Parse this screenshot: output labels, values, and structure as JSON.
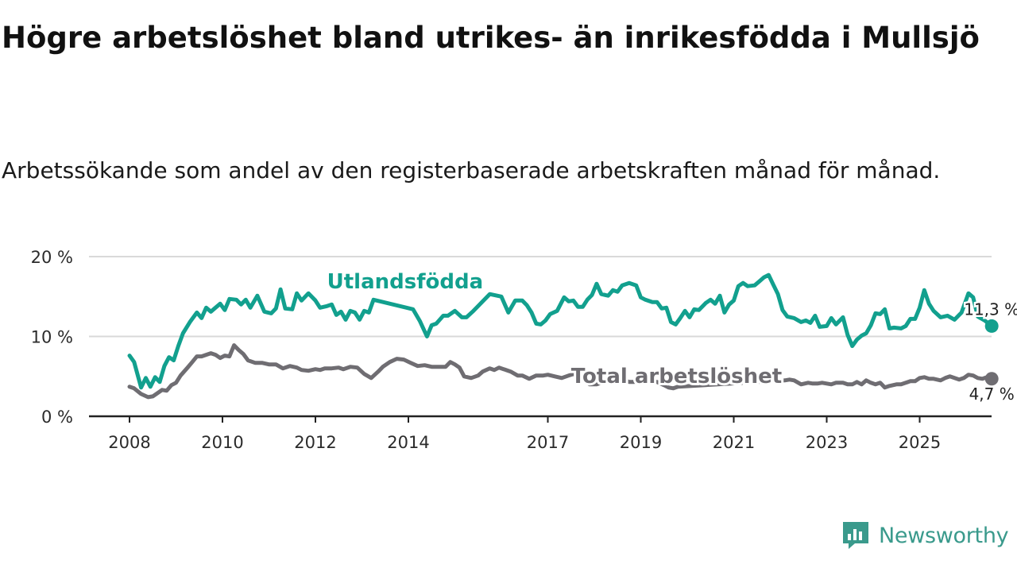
{
  "title": "Högre arbetslöshet bland utrikes- än inrikesfödda i Mullsjö",
  "subtitle": "Arbetssökande som andel av den registerbaserade arbetskraften månad för månad.",
  "brand": "Newsworthy",
  "colors": {
    "utlandsfodda": "#12a08e",
    "total": "#6f6d72",
    "grid": "#d9d9d9",
    "axis": "#222222",
    "brand": "#3a9a8c"
  },
  "chart_data": {
    "type": "line",
    "title": "Högre arbetslöshet bland utrikes- än inrikesfödda i Mullsjö",
    "ylabel": "",
    "xlabel": "",
    "ylim": [
      0,
      20
    ],
    "xlim": [
      2007.6,
      2026.6
    ],
    "y_ticks": [
      0,
      10,
      20
    ],
    "y_tick_labels": [
      "0 %",
      "10 %",
      "20 %"
    ],
    "x_ticks": [
      2008,
      2010,
      2012,
      2014,
      2017,
      2019,
      2021,
      2023,
      2025
    ],
    "x_tick_labels": [
      "2008",
      "2010",
      "2012",
      "2014",
      "2017",
      "2019",
      "2021",
      "2023",
      "2025"
    ],
    "grid": true,
    "series": [
      {
        "name": "Utlandsfödda",
        "label": "Utlandsfödda",
        "end_label": "11,3 %",
        "points": [
          [
            2008.0,
            7.6
          ],
          [
            2008.1,
            6.8
          ],
          [
            2008.25,
            3.6
          ],
          [
            2008.35,
            4.8
          ],
          [
            2008.45,
            3.7
          ],
          [
            2008.55,
            4.9
          ],
          [
            2008.65,
            4.3
          ],
          [
            2008.75,
            6.3
          ],
          [
            2008.85,
            7.4
          ],
          [
            2008.95,
            7.0
          ],
          [
            2009.05,
            8.8
          ],
          [
            2009.15,
            10.4
          ],
          [
            2009.3,
            11.8
          ],
          [
            2009.45,
            13.0
          ],
          [
            2009.55,
            12.3
          ],
          [
            2009.65,
            13.6
          ],
          [
            2009.75,
            13.1
          ],
          [
            2009.85,
            13.6
          ],
          [
            2009.95,
            14.1
          ],
          [
            2010.05,
            13.3
          ],
          [
            2010.15,
            14.7
          ],
          [
            2010.3,
            14.6
          ],
          [
            2010.4,
            14.0
          ],
          [
            2010.5,
            14.6
          ],
          [
            2010.6,
            13.6
          ],
          [
            2010.75,
            15.1
          ],
          [
            2010.9,
            13.1
          ],
          [
            2011.05,
            12.9
          ],
          [
            2011.15,
            13.5
          ],
          [
            2011.25,
            15.9
          ],
          [
            2011.35,
            13.5
          ],
          [
            2011.5,
            13.4
          ],
          [
            2011.6,
            15.4
          ],
          [
            2011.7,
            14.5
          ],
          [
            2011.85,
            15.4
          ],
          [
            2012.0,
            14.5
          ],
          [
            2012.1,
            13.6
          ],
          [
            2012.25,
            13.8
          ],
          [
            2012.35,
            14.0
          ],
          [
            2012.45,
            12.7
          ],
          [
            2012.55,
            13.1
          ],
          [
            2012.65,
            12.1
          ],
          [
            2012.75,
            13.2
          ],
          [
            2012.85,
            13.0
          ],
          [
            2012.95,
            12.1
          ],
          [
            2013.05,
            13.2
          ],
          [
            2013.15,
            13.0
          ],
          [
            2013.25,
            14.6
          ],
          [
            2014.1,
            13.4
          ],
          [
            2014.25,
            11.9
          ],
          [
            2014.4,
            10.0
          ],
          [
            2014.5,
            11.4
          ],
          [
            2014.6,
            11.6
          ],
          [
            2014.75,
            12.6
          ],
          [
            2014.85,
            12.6
          ],
          [
            2015.0,
            13.2
          ],
          [
            2015.15,
            12.4
          ],
          [
            2015.25,
            12.4
          ],
          [
            2015.4,
            13.2
          ],
          [
            2015.6,
            14.4
          ],
          [
            2015.75,
            15.3
          ],
          [
            2016.0,
            15.0
          ],
          [
            2016.15,
            13.0
          ],
          [
            2016.3,
            14.5
          ],
          [
            2016.45,
            14.5
          ],
          [
            2016.55,
            13.9
          ],
          [
            2016.65,
            13.0
          ],
          [
            2016.75,
            11.6
          ],
          [
            2016.85,
            11.5
          ],
          [
            2016.95,
            12.0
          ],
          [
            2017.05,
            12.8
          ],
          [
            2017.2,
            13.2
          ],
          [
            2017.35,
            14.9
          ],
          [
            2017.45,
            14.4
          ],
          [
            2017.55,
            14.5
          ],
          [
            2017.65,
            13.7
          ],
          [
            2017.75,
            13.7
          ],
          [
            2017.85,
            14.6
          ],
          [
            2017.95,
            15.2
          ],
          [
            2018.05,
            16.6
          ],
          [
            2018.15,
            15.3
          ],
          [
            2018.3,
            15.1
          ],
          [
            2018.4,
            15.8
          ],
          [
            2018.5,
            15.6
          ],
          [
            2018.6,
            16.4
          ],
          [
            2018.75,
            16.7
          ],
          [
            2018.9,
            16.4
          ],
          [
            2019.0,
            14.9
          ],
          [
            2019.1,
            14.6
          ],
          [
            2019.25,
            14.3
          ],
          [
            2019.35,
            14.3
          ],
          [
            2019.45,
            13.5
          ],
          [
            2019.55,
            13.6
          ],
          [
            2019.65,
            11.8
          ],
          [
            2019.75,
            11.5
          ],
          [
            2019.85,
            12.3
          ],
          [
            2019.95,
            13.2
          ],
          [
            2020.05,
            12.4
          ],
          [
            2020.15,
            13.4
          ],
          [
            2020.25,
            13.3
          ],
          [
            2020.4,
            14.2
          ],
          [
            2020.5,
            14.6
          ],
          [
            2020.6,
            14.1
          ],
          [
            2020.7,
            15.1
          ],
          [
            2020.8,
            13.0
          ],
          [
            2020.9,
            14.0
          ],
          [
            2021.0,
            14.5
          ],
          [
            2021.1,
            16.3
          ],
          [
            2021.2,
            16.7
          ],
          [
            2021.3,
            16.3
          ],
          [
            2021.45,
            16.4
          ],
          [
            2021.55,
            16.9
          ],
          [
            2021.65,
            17.4
          ],
          [
            2021.75,
            17.7
          ],
          [
            2021.85,
            16.5
          ],
          [
            2021.95,
            15.3
          ],
          [
            2022.05,
            13.3
          ],
          [
            2022.15,
            12.5
          ],
          [
            2022.3,
            12.3
          ],
          [
            2022.45,
            11.8
          ],
          [
            2022.55,
            12.0
          ],
          [
            2022.65,
            11.7
          ],
          [
            2022.75,
            12.6
          ],
          [
            2022.85,
            11.2
          ],
          [
            2023.0,
            11.3
          ],
          [
            2023.1,
            12.3
          ],
          [
            2023.2,
            11.5
          ],
          [
            2023.35,
            12.4
          ],
          [
            2023.45,
            10.2
          ],
          [
            2023.55,
            8.8
          ],
          [
            2023.65,
            9.6
          ],
          [
            2023.75,
            10.1
          ],
          [
            2023.85,
            10.4
          ],
          [
            2023.95,
            11.4
          ],
          [
            2024.05,
            12.9
          ],
          [
            2024.15,
            12.8
          ],
          [
            2024.25,
            13.4
          ],
          [
            2024.35,
            11.0
          ],
          [
            2024.45,
            11.1
          ],
          [
            2024.6,
            11.0
          ],
          [
            2024.7,
            11.3
          ],
          [
            2024.8,
            12.2
          ],
          [
            2024.9,
            12.2
          ],
          [
            2025.0,
            13.6
          ],
          [
            2025.1,
            15.8
          ],
          [
            2025.2,
            14.1
          ],
          [
            2025.3,
            13.2
          ],
          [
            2025.45,
            12.4
          ],
          [
            2025.6,
            12.6
          ],
          [
            2025.75,
            12.1
          ],
          [
            2025.9,
            13.0
          ],
          [
            2026.05,
            15.4
          ],
          [
            2026.15,
            14.9
          ],
          [
            2026.25,
            12.5
          ],
          [
            2026.4,
            12.0
          ],
          [
            2026.55,
            11.3
          ]
        ]
      },
      {
        "name": "Total arbetslöshet",
        "label": "Total arbetslöshet",
        "end_label": "4,7 %",
        "points": [
          [
            2008.0,
            3.7
          ],
          [
            2008.1,
            3.5
          ],
          [
            2008.25,
            2.8
          ],
          [
            2008.4,
            2.4
          ],
          [
            2008.5,
            2.5
          ],
          [
            2008.6,
            2.9
          ],
          [
            2008.7,
            3.3
          ],
          [
            2008.8,
            3.2
          ],
          [
            2008.9,
            3.9
          ],
          [
            2009.0,
            4.2
          ],
          [
            2009.1,
            5.1
          ],
          [
            2009.25,
            6.1
          ],
          [
            2009.35,
            6.8
          ],
          [
            2009.45,
            7.5
          ],
          [
            2009.55,
            7.5
          ],
          [
            2009.65,
            7.7
          ],
          [
            2009.75,
            7.9
          ],
          [
            2009.85,
            7.7
          ],
          [
            2009.95,
            7.3
          ],
          [
            2010.05,
            7.6
          ],
          [
            2010.15,
            7.5
          ],
          [
            2010.25,
            8.9
          ],
          [
            2010.35,
            8.3
          ],
          [
            2010.45,
            7.8
          ],
          [
            2010.55,
            7.0
          ],
          [
            2010.7,
            6.7
          ],
          [
            2010.85,
            6.7
          ],
          [
            2011.0,
            6.5
          ],
          [
            2011.15,
            6.5
          ],
          [
            2011.3,
            6.0
          ],
          [
            2011.45,
            6.3
          ],
          [
            2011.6,
            6.1
          ],
          [
            2011.7,
            5.8
          ],
          [
            2011.85,
            5.7
          ],
          [
            2012.0,
            5.9
          ],
          [
            2012.1,
            5.8
          ],
          [
            2012.2,
            6.0
          ],
          [
            2012.35,
            6.0
          ],
          [
            2012.5,
            6.1
          ],
          [
            2012.6,
            5.9
          ],
          [
            2012.75,
            6.2
          ],
          [
            2012.9,
            6.1
          ],
          [
            2013.05,
            5.3
          ],
          [
            2013.2,
            4.8
          ],
          [
            2013.35,
            5.6
          ],
          [
            2013.45,
            6.2
          ],
          [
            2013.6,
            6.8
          ],
          [
            2013.75,
            7.2
          ],
          [
            2013.9,
            7.1
          ],
          [
            2014.05,
            6.7
          ],
          [
            2014.2,
            6.3
          ],
          [
            2014.35,
            6.4
          ],
          [
            2014.5,
            6.2
          ],
          [
            2014.65,
            6.2
          ],
          [
            2014.8,
            6.2
          ],
          [
            2014.9,
            6.8
          ],
          [
            2015.0,
            6.5
          ],
          [
            2015.1,
            6.1
          ],
          [
            2015.2,
            5.0
          ],
          [
            2015.35,
            4.8
          ],
          [
            2015.5,
            5.1
          ],
          [
            2015.6,
            5.6
          ],
          [
            2015.75,
            6.0
          ],
          [
            2015.85,
            5.8
          ],
          [
            2015.95,
            6.1
          ],
          [
            2016.05,
            5.9
          ],
          [
            2016.2,
            5.6
          ],
          [
            2016.35,
            5.1
          ],
          [
            2016.45,
            5.1
          ],
          [
            2016.6,
            4.7
          ],
          [
            2016.75,
            5.1
          ],
          [
            2016.9,
            5.1
          ],
          [
            2017.0,
            5.2
          ],
          [
            2017.15,
            5.0
          ],
          [
            2017.3,
            4.8
          ],
          [
            2017.45,
            5.1
          ],
          [
            2017.55,
            5.3
          ],
          [
            2017.65,
            5.0
          ],
          [
            2017.8,
            4.5
          ],
          [
            2017.9,
            4.0
          ],
          [
            2018.05,
            4.0
          ],
          [
            2018.2,
            4.3
          ],
          [
            2018.35,
            4.4
          ],
          [
            2018.5,
            4.3
          ],
          [
            2018.65,
            4.5
          ],
          [
            2018.75,
            4.3
          ],
          [
            2018.85,
            4.3
          ],
          [
            2019.0,
            4.4
          ],
          [
            2019.35,
            4.3
          ],
          [
            2019.5,
            3.9
          ],
          [
            2019.6,
            3.6
          ],
          [
            2019.7,
            3.5
          ],
          [
            2019.8,
            3.7
          ],
          [
            2022.1,
            4.5
          ],
          [
            2022.2,
            4.6
          ],
          [
            2022.3,
            4.5
          ],
          [
            2022.45,
            4.0
          ],
          [
            2022.6,
            4.2
          ],
          [
            2022.7,
            4.1
          ],
          [
            2022.8,
            4.1
          ],
          [
            2022.9,
            4.2
          ],
          [
            2023.0,
            4.1
          ],
          [
            2023.1,
            4.0
          ],
          [
            2023.2,
            4.2
          ],
          [
            2023.35,
            4.2
          ],
          [
            2023.45,
            4.0
          ],
          [
            2023.55,
            4.0
          ],
          [
            2023.65,
            4.3
          ],
          [
            2023.75,
            4.0
          ],
          [
            2023.85,
            4.5
          ],
          [
            2023.95,
            4.2
          ],
          [
            2024.05,
            4.0
          ],
          [
            2024.15,
            4.2
          ],
          [
            2024.25,
            3.6
          ],
          [
            2024.35,
            3.8
          ],
          [
            2024.5,
            4.0
          ],
          [
            2024.6,
            4.0
          ],
          [
            2024.7,
            4.2
          ],
          [
            2024.8,
            4.4
          ],
          [
            2024.9,
            4.4
          ],
          [
            2025.0,
            4.8
          ],
          [
            2025.1,
            4.9
          ],
          [
            2025.2,
            4.7
          ],
          [
            2025.3,
            4.7
          ],
          [
            2025.45,
            4.5
          ],
          [
            2025.55,
            4.8
          ],
          [
            2025.65,
            5.0
          ],
          [
            2025.75,
            4.8
          ],
          [
            2025.85,
            4.6
          ],
          [
            2025.95,
            4.8
          ],
          [
            2026.05,
            5.2
          ],
          [
            2026.15,
            5.1
          ],
          [
            2026.25,
            4.8
          ],
          [
            2026.35,
            4.7
          ],
          [
            2026.45,
            4.9
          ],
          [
            2026.55,
            4.7
          ]
        ]
      }
    ]
  }
}
